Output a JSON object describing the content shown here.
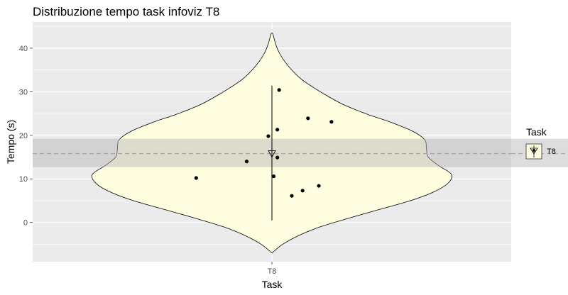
{
  "chart_data": {
    "type": "violin",
    "title": "Distribuzione tempo task infoviz T8",
    "xlabel": "Task",
    "ylabel": "Tempo (s)",
    "categories": [
      "T8"
    ],
    "ylim": [
      -9,
      46
    ],
    "yticks": [
      0,
      10,
      20,
      30,
      40
    ],
    "grid": true,
    "legend": {
      "title": "Task",
      "entries": [
        "T8"
      ],
      "position": "right"
    },
    "violin": {
      "min": -7,
      "max": 43.5,
      "profile": [
        {
          "y": -7,
          "w": 0.0
        },
        {
          "y": -5,
          "w": 0.06
        },
        {
          "y": -3,
          "w": 0.15
        },
        {
          "y": -1,
          "w": 0.27
        },
        {
          "y": 1,
          "w": 0.43
        },
        {
          "y": 3,
          "w": 0.6
        },
        {
          "y": 5,
          "w": 0.77
        },
        {
          "y": 7,
          "w": 0.9
        },
        {
          "y": 9,
          "w": 0.98
        },
        {
          "y": 11,
          "w": 1.0
        },
        {
          "y": 13,
          "w": 0.93
        },
        {
          "y": 15,
          "w": 0.87
        },
        {
          "y": 17,
          "w": 0.86
        },
        {
          "y": 19,
          "w": 0.85
        },
        {
          "y": 21,
          "w": 0.78
        },
        {
          "y": 23,
          "w": 0.66
        },
        {
          "y": 25,
          "w": 0.52
        },
        {
          "y": 27,
          "w": 0.4
        },
        {
          "y": 29,
          "w": 0.31
        },
        {
          "y": 31,
          "w": 0.23
        },
        {
          "y": 33,
          "w": 0.16
        },
        {
          "y": 35,
          "w": 0.11
        },
        {
          "y": 37,
          "w": 0.07
        },
        {
          "y": 39,
          "w": 0.04
        },
        {
          "y": 41,
          "w": 0.02
        },
        {
          "y": 43.5,
          "w": 0.0
        }
      ]
    },
    "points": [
      {
        "jitter": -0.42,
        "y": 10.2
      },
      {
        "jitter": -0.14,
        "y": 14.0
      },
      {
        "jitter": -0.02,
        "y": 19.8
      },
      {
        "jitter": 0.01,
        "y": 10.6
      },
      {
        "jitter": 0.03,
        "y": 14.9
      },
      {
        "jitter": 0.03,
        "y": 21.3
      },
      {
        "jitter": 0.04,
        "y": 30.4
      },
      {
        "jitter": 0.11,
        "y": 6.1
      },
      {
        "jitter": 0.17,
        "y": 7.3
      },
      {
        "jitter": 0.2,
        "y": 23.9
      },
      {
        "jitter": 0.26,
        "y": 8.4
      },
      {
        "jitter": 0.33,
        "y": 23.1
      }
    ],
    "mean": 15.8,
    "mean_ci": [
      12.7,
      19.2
    ],
    "range_line": [
      0.5,
      31.4
    ],
    "colors": {
      "panel": "#ebebeb",
      "grid": "#ffffff",
      "violin_fill": "#fffde0",
      "ci_band": "#b3b3b3",
      "mean_line": "#a6a6a6",
      "points": "#000000"
    }
  }
}
